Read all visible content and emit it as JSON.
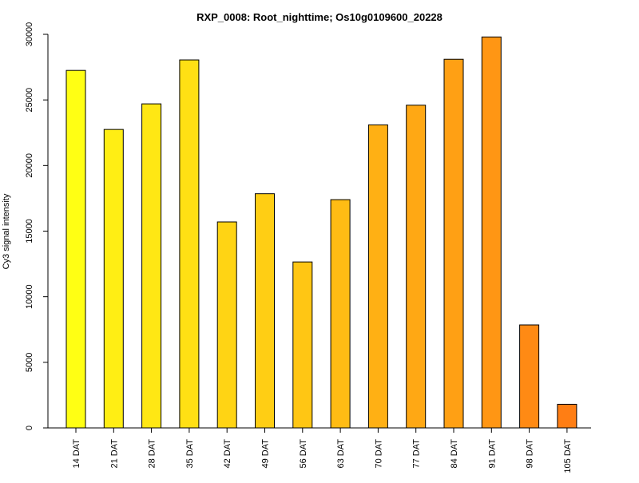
{
  "chart_data": {
    "type": "bar",
    "title": "RXP_0008: Root_nighttime; Os10g0109600_20228",
    "ylabel": "Cy3 signal intensity",
    "xlabel": "",
    "ylim": [
      0,
      30000
    ],
    "yticks": [
      0,
      5000,
      10000,
      15000,
      20000,
      25000,
      30000
    ],
    "grid": false,
    "legend": "none",
    "categories": [
      "14 DAT",
      "21 DAT",
      "28 DAT",
      "35 DAT",
      "42 DAT",
      "49 DAT",
      "56 DAT",
      "63 DAT",
      "70 DAT",
      "77 DAT",
      "84 DAT",
      "91 DAT",
      "98 DAT",
      "105 DAT"
    ],
    "values": [
      27250,
      22750,
      24700,
      28050,
      15700,
      17850,
      12650,
      17400,
      23100,
      24600,
      28100,
      29800,
      7850,
      1800
    ],
    "colors": [
      "#FFFF14",
      "#FFEE14",
      "#FFE714",
      "#FFE014",
      "#FFD414",
      "#FFCE14",
      "#FFC614",
      "#FFBC14",
      "#FFB014",
      "#FFA814",
      "#FFA014",
      "#FF9614",
      "#FF8A14",
      "#FF7E14"
    ],
    "bar_stroke": "#000000",
    "axis_color": "#000000"
  }
}
